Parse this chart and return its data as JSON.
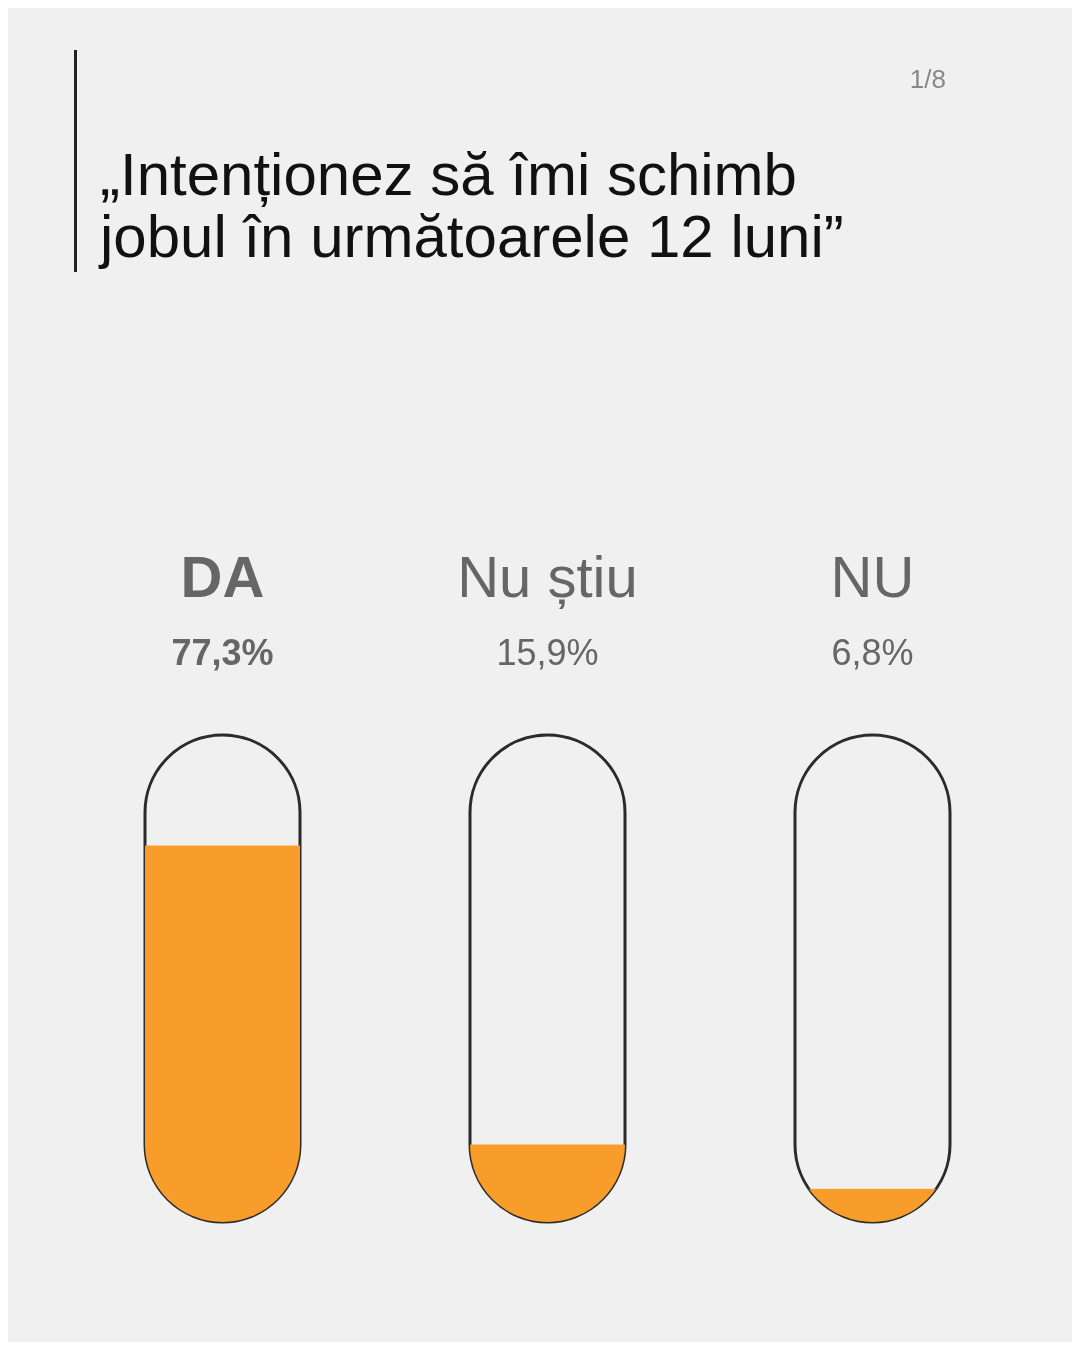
{
  "chart_data": {
    "type": "bar",
    "title": "„Intenționez să îmi schimb jobul în următoarele 12 luni”",
    "categories": [
      "DA",
      "Nu știu",
      "NU"
    ],
    "values": [
      77.3,
      15.9,
      6.8
    ],
    "value_labels": [
      "77,3%",
      "15,9%",
      "6,8%"
    ],
    "color": "#f89c2a",
    "ylim": [
      0,
      100
    ],
    "tick_labels": "x",
    "annotations": [
      "1/8"
    ]
  }
}
